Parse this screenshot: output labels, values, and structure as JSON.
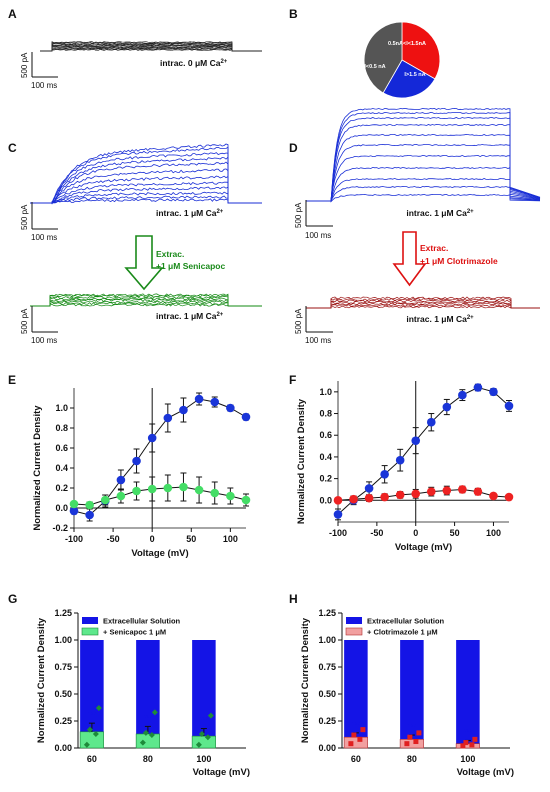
{
  "panels": {
    "A": {
      "label": "A",
      "caption_pre": "intrac. 0 μM Ca",
      "sup": "2+",
      "scale_y": "500 pA",
      "scale_x": "100 ms"
    },
    "B": {
      "label": "B",
      "slices": [
        {
          "label": "0.5nA<I<1.5nA",
          "fraction": 0.333,
          "color": "#ee1111"
        },
        {
          "label": "I>1.5 nA",
          "fraction": 0.25,
          "color": "#1428d8"
        },
        {
          "label": "I<0.5 nA",
          "fraction": 0.417,
          "color": "#555555"
        }
      ]
    },
    "C": {
      "label": "C",
      "caption_pre": "intrac. 1 μM Ca",
      "sup": "2+",
      "scale_y": "500 pA",
      "scale_x": "100 ms",
      "color": "#1a2fd6"
    },
    "D": {
      "label": "D",
      "caption_pre": "intrac. 1 μM Ca",
      "sup": "2+",
      "scale_y": "500 pA",
      "scale_x": "100 ms",
      "color": "#1a2fd6"
    },
    "C2": {
      "caption_pre": "intrac. 1 μM Ca",
      "sup": "2+",
      "scale_y": "500 pA",
      "scale_x": "100 ms",
      "color": "#118811"
    },
    "D2": {
      "caption_pre": "intrac. 1 μM Ca",
      "sup": "2+",
      "scale_y": "500 pA",
      "scale_x": "100 ms",
      "color": "#9a1010"
    },
    "arrowC": {
      "line1": "Extrac.",
      "line2": "+1 μM Senicapoc",
      "color": "#1a8a1a"
    },
    "arrowD": {
      "line1": "Extrac.",
      "line2": "+1 μM Clotrimazole",
      "color": "#dd1111"
    },
    "E": {
      "label": "E"
    },
    "F": {
      "label": "F"
    },
    "G": {
      "label": "G"
    },
    "H": {
      "label": "H"
    }
  },
  "chart_data": [
    {
      "panel": "E",
      "type": "line",
      "xlabel": "Voltage (mV)",
      "ylabel": "Normalized Current Density",
      "xlim": [
        -100,
        120
      ],
      "ylim": [
        -0.2,
        1.2
      ],
      "xticks": [
        -100,
        -50,
        0,
        50,
        100
      ],
      "yticks": [
        -0.2,
        0.0,
        0.2,
        0.4,
        0.6,
        0.8,
        1.0
      ],
      "ytick_labels": [
        "-0.2",
        "0.0",
        "0.2",
        "0.4",
        "0.6",
        "0.8",
        "1.0"
      ],
      "series": [
        {
          "color": "#1a35d8",
          "x": [
            -100,
            -80,
            -60,
            -40,
            -20,
            0,
            20,
            40,
            60,
            80,
            100,
            120
          ],
          "y": [
            -0.03,
            -0.07,
            0.07,
            0.28,
            0.47,
            0.7,
            0.9,
            0.98,
            1.09,
            1.06,
            1.0,
            0.91
          ],
          "err": [
            0.03,
            0.06,
            0.06,
            0.1,
            0.12,
            0.14,
            0.14,
            0.12,
            0.06,
            0.05,
            0.03,
            0.03
          ]
        },
        {
          "color": "#44dd66",
          "x": [
            -100,
            -80,
            -60,
            -40,
            -20,
            0,
            20,
            40,
            60,
            80,
            100,
            120
          ],
          "y": [
            0.04,
            0.03,
            0.08,
            0.12,
            0.17,
            0.19,
            0.2,
            0.21,
            0.18,
            0.15,
            0.12,
            0.08
          ],
          "err": [
            0.02,
            0.03,
            0.05,
            0.07,
            0.09,
            0.12,
            0.13,
            0.14,
            0.13,
            0.11,
            0.08,
            0.06
          ]
        }
      ]
    },
    {
      "panel": "F",
      "type": "line",
      "xlabel": "Voltage (mV)",
      "ylabel": "Normalized Current Density",
      "xlim": [
        -100,
        120
      ],
      "ylim": [
        -0.2,
        1.1
      ],
      "xticks": [
        -100,
        -50,
        0,
        50,
        100
      ],
      "yticks": [
        0.0,
        0.2,
        0.4,
        0.6,
        0.8,
        1.0
      ],
      "ytick_labels": [
        "0.0",
        "0.2",
        "0.4",
        "0.6",
        "0.8",
        "1.0"
      ],
      "series": [
        {
          "color": "#1a35d8",
          "x": [
            -100,
            -80,
            -60,
            -40,
            -20,
            0,
            20,
            40,
            60,
            80,
            100,
            120
          ],
          "y": [
            -0.13,
            0.0,
            0.11,
            0.24,
            0.37,
            0.55,
            0.72,
            0.86,
            0.97,
            1.04,
            1.0,
            0.87
          ],
          "err": [
            0.05,
            0.04,
            0.06,
            0.08,
            0.1,
            0.12,
            0.08,
            0.07,
            0.05,
            0.03,
            0.03,
            0.05
          ]
        },
        {
          "color": "#ee2222",
          "x": [
            -100,
            -80,
            -60,
            -40,
            -20,
            0,
            20,
            40,
            60,
            80,
            100,
            120
          ],
          "y": [
            0.0,
            0.01,
            0.02,
            0.03,
            0.05,
            0.06,
            0.08,
            0.09,
            0.1,
            0.08,
            0.04,
            0.03
          ],
          "err": [
            0.01,
            0.02,
            0.03,
            0.03,
            0.03,
            0.04,
            0.04,
            0.04,
            0.03,
            0.03,
            0.02,
            0.01
          ]
        }
      ]
    },
    {
      "panel": "G",
      "type": "bar",
      "xlabel": "Voltage (mV)",
      "ylabel": "Normalized Current Density",
      "categories": [
        "60",
        "80",
        "100"
      ],
      "ylim": [
        0,
        1.25
      ],
      "yticks": [
        0.0,
        0.25,
        0.5,
        0.75,
        1.0,
        1.25
      ],
      "ytick_labels": [
        "0.00",
        "0.25",
        "0.50",
        "0.75",
        "1.00",
        "1.25"
      ],
      "legend": "top-left",
      "series": [
        {
          "name": "Extracellular Solution",
          "values": [
            1.0,
            1.0,
            1.0
          ],
          "color": "#1414e6"
        },
        {
          "name": "+ Senicapoc 1 μM",
          "values": [
            0.15,
            0.13,
            0.11
          ],
          "err": [
            0.08,
            0.07,
            0.07
          ],
          "color": "#5ee88c",
          "edge": "#1e8a3a",
          "points": [
            [
              0.03,
              0.13,
              0.17,
              0.37
            ],
            [
              0.05,
              0.12,
              0.14,
              0.33
            ],
            [
              0.03,
              0.1,
              0.13,
              0.3
            ]
          ]
        }
      ],
      "annotations": [
        "**",
        "**",
        "**"
      ]
    },
    {
      "panel": "H",
      "type": "bar",
      "xlabel": "Voltage (mV)",
      "ylabel": "Normalized Current Density",
      "categories": [
        "60",
        "80",
        "100"
      ],
      "ylim": [
        0,
        1.25
      ],
      "yticks": [
        0.0,
        0.25,
        0.5,
        0.75,
        1.0,
        1.25
      ],
      "ytick_labels": [
        "0.00",
        "0.25",
        "0.50",
        "0.75",
        "1.00",
        "1.25"
      ],
      "legend": "top-left",
      "series": [
        {
          "name": "Extracellular Solution",
          "values": [
            1.0,
            1.0,
            1.0
          ],
          "color": "#1414e6"
        },
        {
          "name": "+ Clotrimazole 1 μM",
          "values": [
            0.1,
            0.08,
            0.04
          ],
          "err": [
            0.04,
            0.04,
            0.03
          ],
          "color": "#f2a0a0",
          "edge": "#b03030",
          "points": [
            [
              0.04,
              0.08,
              0.12,
              0.17
            ],
            [
              0.04,
              0.06,
              0.1,
              0.14
            ],
            [
              0.02,
              0.03,
              0.05,
              0.08
            ]
          ]
        }
      ],
      "annotations": [
        "**",
        "**",
        "**"
      ]
    }
  ]
}
